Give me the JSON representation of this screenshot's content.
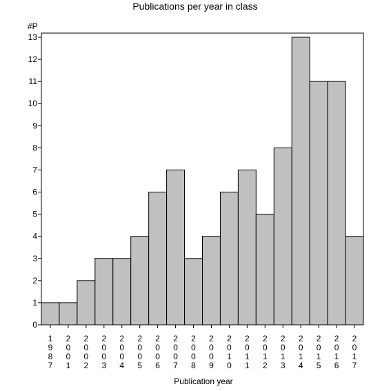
{
  "chart_data": {
    "type": "bar",
    "title": "Publications per year in class",
    "xlabel": "Publication year",
    "ylabel": "#P",
    "categories": [
      "1987",
      "2001",
      "2002",
      "2003",
      "2004",
      "2005",
      "2006",
      "2007",
      "2008",
      "2009",
      "2010",
      "2011",
      "2012",
      "2013",
      "2014",
      "2015",
      "2016",
      "2017"
    ],
    "values": [
      1,
      1,
      2,
      3,
      3,
      4,
      6,
      7,
      3,
      4,
      6,
      7,
      5,
      8,
      13,
      11,
      11,
      4
    ],
    "ylim": [
      0,
      13
    ],
    "yticks": [
      0,
      1,
      2,
      3,
      4,
      5,
      6,
      7,
      8,
      9,
      10,
      11,
      12,
      13
    ],
    "colors": {
      "bar": "#c0c0c0",
      "stroke": "#000000"
    }
  }
}
